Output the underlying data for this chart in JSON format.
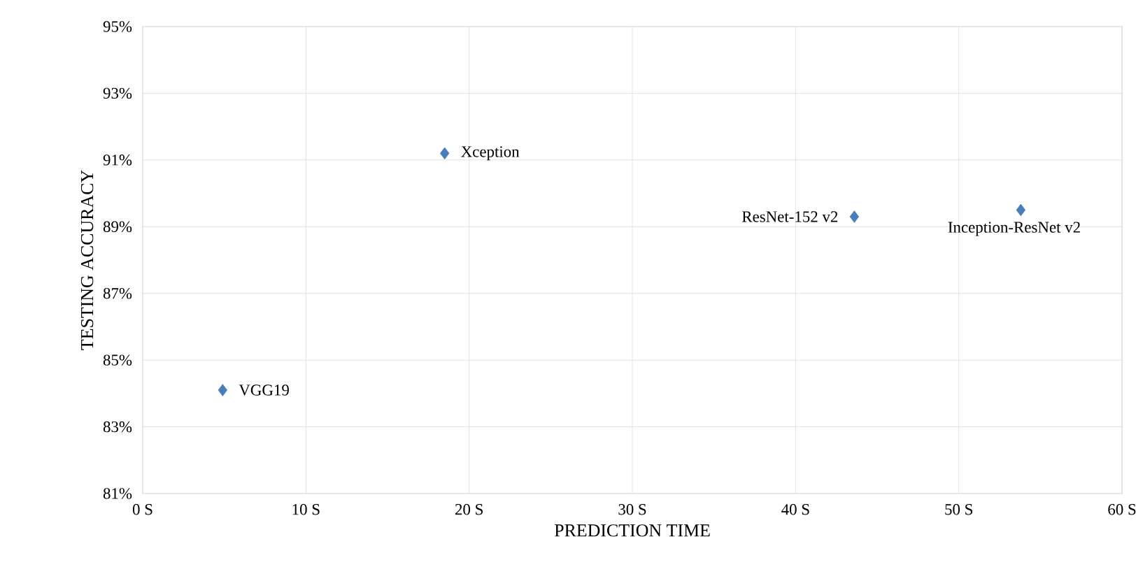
{
  "chart_data": {
    "type": "scatter",
    "xlabel": "PREDICTION TIME",
    "ylabel": "TESTING ACCURACY",
    "x": [
      4.9,
      18.5,
      43.6,
      53.8
    ],
    "series": [
      {
        "color": "#4a7ebb",
        "values": [
          84.1,
          91.2,
          89.3,
          89.5
        ]
      }
    ],
    "marker": "diamond",
    "grid": true,
    "xlim": [
      0,
      60
    ],
    "ylim": [
      81,
      95
    ],
    "xticks": [
      {
        "value": 0,
        "label": "0 S"
      },
      {
        "value": 10,
        "label": "10 S"
      },
      {
        "value": 20,
        "label": "20 S"
      },
      {
        "value": 30,
        "label": "30 S"
      },
      {
        "value": 40,
        "label": "40 S"
      },
      {
        "value": 50,
        "label": "50 S"
      },
      {
        "value": 60,
        "label": "60 S"
      }
    ],
    "yticks": [
      {
        "value": 81,
        "label": "81%"
      },
      {
        "value": 83,
        "label": "83%"
      },
      {
        "value": 85,
        "label": "85%"
      },
      {
        "value": 87,
        "label": "87%"
      },
      {
        "value": 89,
        "label": "89%"
      },
      {
        "value": 91,
        "label": "91%"
      },
      {
        "value": 93,
        "label": "93%"
      },
      {
        "value": 95,
        "label": "95%"
      }
    ],
    "annotations": [
      {
        "text": "VGG19",
        "x": 4.9,
        "y": 84.1
      },
      {
        "text": "Xception",
        "x": 18.5,
        "y": 91.2
      },
      {
        "text": "ResNet-152 v2",
        "x": 43.6,
        "y": 89.3
      },
      {
        "text": "Inception-ResNet v2",
        "x": 53.8,
        "y": 89.5
      }
    ]
  }
}
